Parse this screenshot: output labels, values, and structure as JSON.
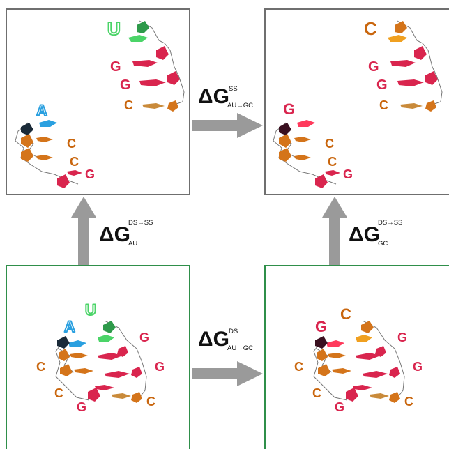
{
  "colors": {
    "single_strand_border": "#6f6f6f",
    "double_strand_border": "#2f8f4a",
    "arrow": "#9a9a9a",
    "A": "#2aa0e0",
    "U": "#4bd468",
    "G": "#d9254e",
    "C": "#c9660e"
  },
  "panels": {
    "top_left": {
      "letters": [
        "U",
        "G",
        "G",
        "C",
        "A",
        "C",
        "C",
        "G"
      ]
    },
    "top_right": {
      "letters": [
        "C",
        "G",
        "G",
        "C",
        "G",
        "C",
        "C",
        "G"
      ]
    },
    "bottom_left": {
      "letters": [
        "U",
        "A",
        "G",
        "G",
        "C",
        "C",
        "G",
        "C"
      ]
    },
    "bottom_right": {
      "letters": [
        "C",
        "G",
        "G",
        "G",
        "C",
        "C",
        "G",
        "C"
      ]
    }
  },
  "energies": {
    "top": {
      "symbol": "ΔG",
      "superscript": "SS",
      "subscript": "AU→GC"
    },
    "bottom": {
      "symbol": "ΔG",
      "superscript": "DS",
      "subscript": "AU→GC"
    },
    "left": {
      "symbol": "ΔG",
      "superscript": "DS→SS",
      "subscript": "AU"
    },
    "right": {
      "symbol": "ΔG",
      "superscript": "DS→SS",
      "subscript": "GC"
    }
  }
}
